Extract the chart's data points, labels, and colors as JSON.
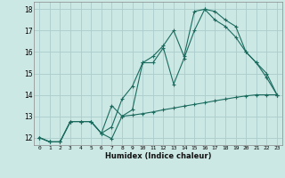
{
  "xlabel": "Humidex (Indice chaleur)",
  "background_color": "#cce8e4",
  "grid_color": "#aaccca",
  "line_color": "#1a6b5e",
  "xlim": [
    -0.5,
    23.5
  ],
  "ylim": [
    11.65,
    18.35
  ],
  "xticks": [
    0,
    1,
    2,
    3,
    4,
    5,
    6,
    7,
    8,
    9,
    10,
    11,
    12,
    13,
    14,
    15,
    16,
    17,
    18,
    19,
    20,
    21,
    22,
    23
  ],
  "yticks": [
    12,
    13,
    14,
    15,
    16,
    17,
    18
  ],
  "line1_x": [
    0,
    1,
    2,
    3,
    4,
    5,
    6,
    7,
    8,
    9,
    10,
    11,
    12,
    13,
    14,
    15,
    16,
    17,
    18,
    19,
    20,
    21,
    22,
    23
  ],
  "line1_y": [
    12.0,
    11.8,
    11.8,
    12.75,
    12.75,
    12.75,
    12.2,
    11.95,
    13.0,
    13.05,
    13.12,
    13.2,
    13.3,
    13.38,
    13.47,
    13.55,
    13.63,
    13.72,
    13.8,
    13.88,
    13.95,
    14.0,
    14.0,
    14.0
  ],
  "line2_x": [
    0,
    1,
    2,
    3,
    4,
    5,
    6,
    7,
    8,
    9,
    10,
    11,
    12,
    13,
    14,
    15,
    16,
    17,
    18,
    19,
    20,
    21,
    22,
    23
  ],
  "line2_y": [
    12.0,
    11.8,
    11.8,
    12.75,
    12.75,
    12.75,
    12.2,
    12.5,
    13.8,
    14.4,
    15.5,
    15.5,
    16.2,
    14.5,
    15.7,
    17.0,
    18.0,
    17.9,
    17.5,
    17.2,
    16.0,
    15.5,
    14.8,
    14.0
  ],
  "line3_x": [
    0,
    1,
    2,
    3,
    4,
    5,
    6,
    7,
    8,
    9,
    10,
    11,
    12,
    13,
    14,
    15,
    16,
    17,
    18,
    19,
    20,
    21,
    22,
    23
  ],
  "line3_y": [
    12.0,
    11.8,
    11.8,
    12.75,
    12.75,
    12.75,
    12.2,
    13.5,
    13.0,
    13.3,
    15.5,
    15.8,
    16.3,
    17.0,
    15.8,
    17.9,
    18.0,
    17.5,
    17.2,
    16.7,
    16.0,
    15.5,
    15.0,
    14.0
  ]
}
